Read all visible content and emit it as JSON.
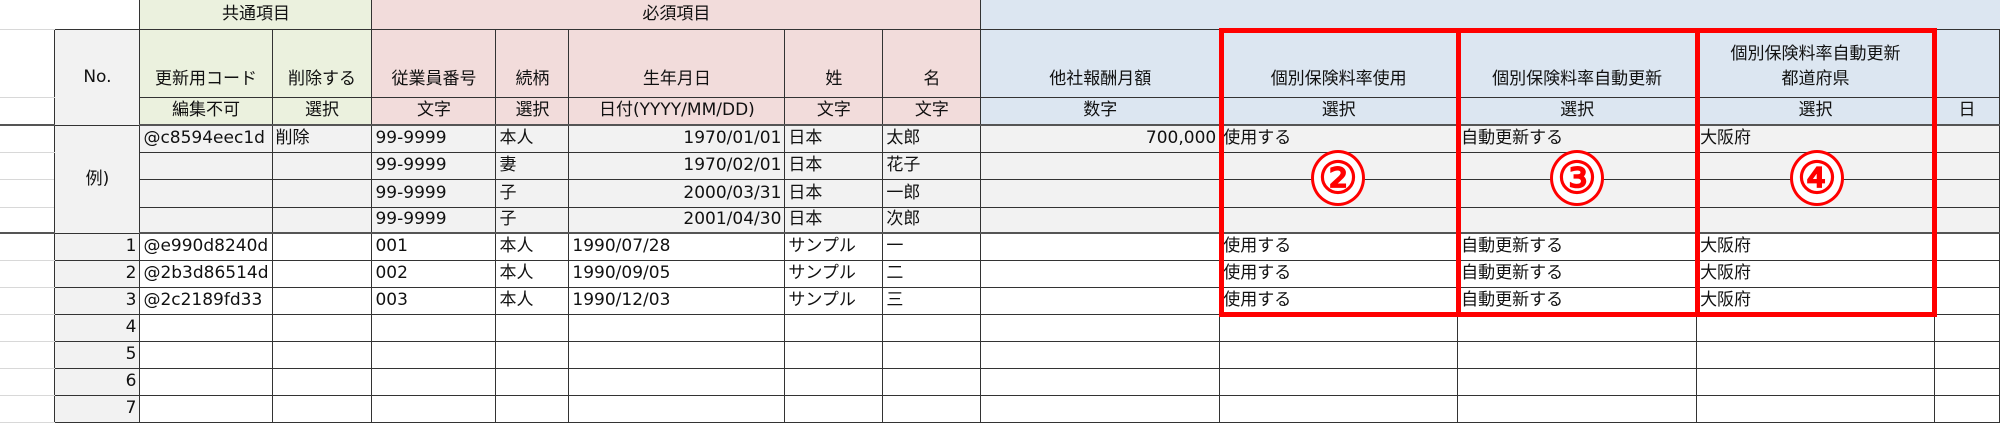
{
  "groups": {
    "common": "共通項目",
    "required": "必須項目"
  },
  "headers": [
    "No.",
    "更新用コード",
    "削除する",
    "従業員番号",
    "続柄",
    "生年月日",
    "姓",
    "名",
    "他社報酬月額",
    "個別保険料率使用",
    "個別保険料率自動更新",
    "個別保険料率自動更新\n都道府県",
    ""
  ],
  "subheaders": [
    "",
    "編集不可",
    "選択",
    "文字",
    "選択",
    "日付(YYYY/MM/DD)",
    "文字",
    "文字",
    "数字",
    "選択",
    "選択",
    "選択",
    "日"
  ],
  "example_label": "例)",
  "example_rows": [
    [
      "@c8594eec1d",
      "削除",
      "99-9999",
      "本人",
      "1970/01/01",
      "日本",
      "太郎",
      "700,000",
      "使用する",
      "自動更新する",
      "大阪府",
      ""
    ],
    [
      "",
      "",
      "99-9999",
      "妻",
      "1970/02/01",
      "日本",
      "花子",
      "",
      "",
      "",
      "",
      ""
    ],
    [
      "",
      "",
      "99-9999",
      "子",
      "2000/03/31",
      "日本",
      "一郎",
      "",
      "",
      "",
      "",
      ""
    ],
    [
      "",
      "",
      "99-9999",
      "子",
      "2001/04/30",
      "日本",
      "次郎",
      "",
      "",
      "",
      "",
      ""
    ]
  ],
  "rows": [
    {
      "no": "1",
      "cells": [
        "@e990d8240d",
        "",
        "001",
        "本人",
        "1990/07/28",
        "サンプル",
        "一",
        "",
        "使用する",
        "自動更新する",
        "大阪府",
        ""
      ]
    },
    {
      "no": "2",
      "cells": [
        "@2b3d86514d",
        "",
        "002",
        "本人",
        "1990/09/05",
        "サンプル",
        "二",
        "",
        "使用する",
        "自動更新する",
        "大阪府",
        ""
      ]
    },
    {
      "no": "3",
      "cells": [
        "@2c2189fd33",
        "",
        "003",
        "本人",
        "1990/12/03",
        "サンプル",
        "三",
        "",
        "使用する",
        "自動更新する",
        "大阪府",
        ""
      ]
    },
    {
      "no": "4",
      "cells": [
        "",
        "",
        "",
        "",
        "",
        "",
        "",
        "",
        "",
        "",
        "",
        ""
      ]
    },
    {
      "no": "5",
      "cells": [
        "",
        "",
        "",
        "",
        "",
        "",
        "",
        "",
        "",
        "",
        "",
        ""
      ]
    },
    {
      "no": "6",
      "cells": [
        "",
        "",
        "",
        "",
        "",
        "",
        "",
        "",
        "",
        "",
        "",
        ""
      ]
    },
    {
      "no": "7",
      "cells": [
        "",
        "",
        "",
        "",
        "",
        "",
        "",
        "",
        "",
        "",
        "",
        ""
      ]
    }
  ],
  "annotations": [
    "②",
    "③",
    "④"
  ],
  "colors": {
    "highlight": "#ff0000",
    "common": "#ebf1de",
    "required": "#f2dcdb",
    "optional": "#dce6f1"
  }
}
